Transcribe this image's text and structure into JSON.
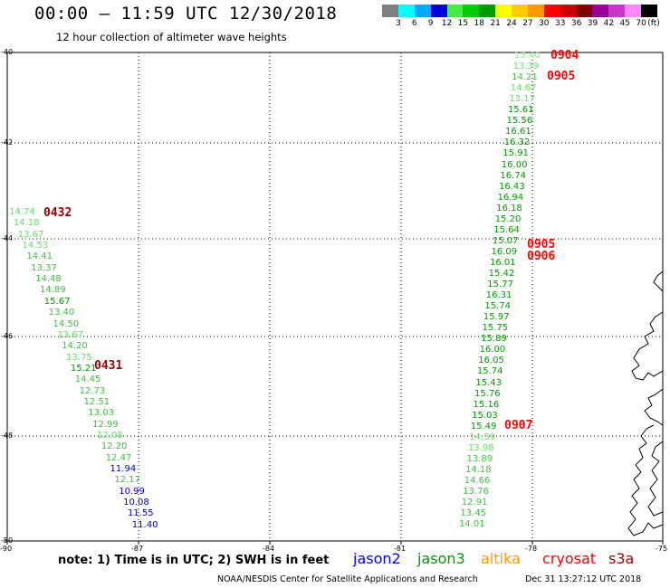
{
  "header": {
    "title": "00:00 – 11:59 UTC 12/30/2018",
    "subtitle": "12 hour collection of altimeter wave heights"
  },
  "colorbar": {
    "unit_label": "(ft)",
    "bins": [
      {
        "color": "#808080",
        "label": "3"
      },
      {
        "color": "#00ffff",
        "label": "6"
      },
      {
        "color": "#00aaff",
        "label": "9"
      },
      {
        "color": "#0000dd",
        "label": "12"
      },
      {
        "color": "#44ee44",
        "label": "15"
      },
      {
        "color": "#00cc00",
        "label": "18"
      },
      {
        "color": "#009900",
        "label": "21"
      },
      {
        "color": "#ffff00",
        "label": "24"
      },
      {
        "color": "#ffcc00",
        "label": "27"
      },
      {
        "color": "#ff9900",
        "label": "30"
      },
      {
        "color": "#ff0000",
        "label": "33"
      },
      {
        "color": "#cc0000",
        "label": "36"
      },
      {
        "color": "#800000",
        "label": "39"
      },
      {
        "color": "#990099",
        "label": "42"
      },
      {
        "color": "#cc33cc",
        "label": "45"
      },
      {
        "color": "#ff88ff",
        "label": "70"
      },
      {
        "color": "#000000",
        "label": ""
      }
    ]
  },
  "axes": {
    "lat_labels": [
      "-40",
      "-42",
      "-44",
      "-46",
      "-48",
      "-50"
    ],
    "lon_labels": [
      "-90",
      "-87",
      "-84",
      "-81",
      "-78",
      "-75"
    ]
  },
  "tracks": [
    {
      "satellite": "left-track",
      "readings": [
        {
          "v": "14.74",
          "c": "#66dd66"
        },
        {
          "v": "14.18",
          "c": "#66dd66"
        },
        {
          "v": "13.67",
          "c": "#66dd66"
        },
        {
          "v": "14.53",
          "c": "#66dd66"
        },
        {
          "v": "14.41",
          "c": "#44bb44"
        },
        {
          "v": "13.37",
          "c": "#44bb44"
        },
        {
          "v": "14.48",
          "c": "#44bb44"
        },
        {
          "v": "14.89",
          "c": "#44bb44"
        },
        {
          "v": "15.67",
          "c": "#009900"
        },
        {
          "v": "13.40",
          "c": "#44bb44"
        },
        {
          "v": "14.50",
          "c": "#44bb44"
        },
        {
          "v": "13.67",
          "c": "#66dd66"
        },
        {
          "v": "14.20",
          "c": "#44bb44"
        },
        {
          "v": "13.75",
          "c": "#66dd66"
        },
        {
          "v": "15.21",
          "c": "#009900"
        },
        {
          "v": "14.45",
          "c": "#44bb44"
        },
        {
          "v": "12.73",
          "c": "#44bb44"
        },
        {
          "v": "12.51",
          "c": "#44bb44"
        },
        {
          "v": "13.03",
          "c": "#44bb44"
        },
        {
          "v": "12.99",
          "c": "#44bb44"
        },
        {
          "v": "12.08",
          "c": "#66dd66"
        },
        {
          "v": "12.20",
          "c": "#44bb44"
        },
        {
          "v": "12.47",
          "c": "#44bb44"
        },
        {
          "v": "11.94",
          "c": "#0000bb"
        },
        {
          "v": "12.17",
          "c": "#44bb44"
        },
        {
          "v": "10.99",
          "c": "#0000bb"
        },
        {
          "v": "10.08",
          "c": "#0000bb"
        },
        {
          "v": "11.55",
          "c": "#0000bb"
        },
        {
          "v": "11.40",
          "c": "#0000bb"
        }
      ]
    },
    {
      "satellite": "right-track",
      "readings": [
        {
          "v": "13.40",
          "c": "#88ee88"
        },
        {
          "v": "13.39",
          "c": "#66dd66"
        },
        {
          "v": "14.21",
          "c": "#44bb44"
        },
        {
          "v": "14.67",
          "c": "#66dd66"
        },
        {
          "v": "13.17",
          "c": "#66dd66"
        },
        {
          "v": "15.61",
          "c": "#009900"
        },
        {
          "v": "15.56",
          "c": "#009900"
        },
        {
          "v": "16.61",
          "c": "#009900"
        },
        {
          "v": "16.32",
          "c": "#009900"
        },
        {
          "v": "15.91",
          "c": "#009900"
        },
        {
          "v": "16.00",
          "c": "#009900"
        },
        {
          "v": "16.74",
          "c": "#009900"
        },
        {
          "v": "16.43",
          "c": "#009900"
        },
        {
          "v": "16.94",
          "c": "#009900"
        },
        {
          "v": "16.18",
          "c": "#009900"
        },
        {
          "v": "15.20",
          "c": "#009900"
        },
        {
          "v": "15.64",
          "c": "#009900"
        },
        {
          "v": "15.07",
          "c": "#009900"
        },
        {
          "v": "16.09",
          "c": "#009900"
        },
        {
          "v": "16.01",
          "c": "#009900"
        },
        {
          "v": "15.42",
          "c": "#009900"
        },
        {
          "v": "15.77",
          "c": "#009900"
        },
        {
          "v": "16.31",
          "c": "#009900"
        },
        {
          "v": "15.74",
          "c": "#009900"
        },
        {
          "v": "15.97",
          "c": "#009900"
        },
        {
          "v": "15.75",
          "c": "#009900"
        },
        {
          "v": "15.89",
          "c": "#009900"
        },
        {
          "v": "16.00",
          "c": "#009900"
        },
        {
          "v": "16.05",
          "c": "#009900"
        },
        {
          "v": "15.74",
          "c": "#009900"
        },
        {
          "v": "15.43",
          "c": "#009900"
        },
        {
          "v": "15.76",
          "c": "#009900"
        },
        {
          "v": "15.16",
          "c": "#009900"
        },
        {
          "v": "15.03",
          "c": "#009900"
        },
        {
          "v": "15.49",
          "c": "#009900"
        },
        {
          "v": "14.59",
          "c": "#66dd66"
        },
        {
          "v": "13.98",
          "c": "#66dd66"
        },
        {
          "v": "13.89",
          "c": "#44bb44"
        },
        {
          "v": "14.18",
          "c": "#44bb44"
        },
        {
          "v": "14.66",
          "c": "#44bb44"
        },
        {
          "v": "13.76",
          "c": "#44bb44"
        },
        {
          "v": "12.91",
          "c": "#44bb44"
        },
        {
          "v": "13.45",
          "c": "#44bb44"
        },
        {
          "v": "14.01",
          "c": "#44bb44"
        }
      ]
    }
  ],
  "times": [
    {
      "label": "0432",
      "color": "#990000"
    },
    {
      "label": "0431",
      "color": "#990000"
    },
    {
      "label": "0904",
      "color": "#ff0000"
    },
    {
      "label": "0905",
      "color": "#ff0000"
    },
    {
      "label": "0905",
      "color": "#ff0000"
    },
    {
      "label": "0906",
      "color": "#ff0000"
    },
    {
      "label": "0907",
      "color": "#ff0000"
    }
  ],
  "note": "note: 1) Time is in UTC; 2) SWH is in feet",
  "legend": [
    {
      "label": "jason2",
      "color": "#0000ff"
    },
    {
      "label": "jason3",
      "color": "#009900"
    },
    {
      "label": "altika",
      "color": "#ff9900"
    },
    {
      "label": "cryosat",
      "color": "#ff0000"
    },
    {
      "label": "s3a",
      "color": "#990000"
    }
  ],
  "footer": {
    "credit": "NOAA/NESDIS Center for Satellite Applications and Research",
    "timestamp": "Dec 31 13:27:12 UTC 2018"
  }
}
